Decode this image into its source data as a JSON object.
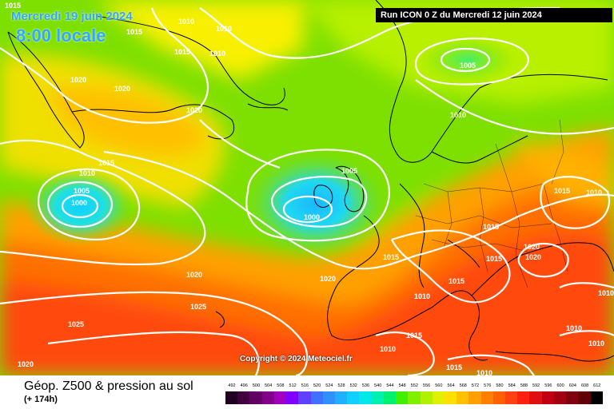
{
  "header": {
    "date_text": "Mercredi 19 juin 2024",
    "time_text": "8:00 locale",
    "run_text": "Run ICON 0 Z du Mercredi 12 juin 2024"
  },
  "footer": {
    "field_title": "Géop. Z500 & pression au sol",
    "lead_time": "(+ 174h)",
    "copyright": "Copyright © 2024 Meteociel.fr"
  },
  "colors": {
    "low_center": "#1ec8ff",
    "mid_green": "#7ee000",
    "high_yellow": "#f0e000",
    "warm_orange": "#ff9a00",
    "hot_red": "#ff3a10",
    "isobars": "#ffffff",
    "coastlines": "#000000"
  },
  "scale": {
    "labels": [
      "492",
      "496",
      "500",
      "504",
      "508",
      "512",
      "516",
      "520",
      "524",
      "528",
      "532",
      "536",
      "540",
      "544",
      "548",
      "552",
      "556",
      "560",
      "564",
      "568",
      "572",
      "576",
      "580",
      "584",
      "588",
      "592",
      "596",
      "600",
      "604",
      "608",
      "612"
    ],
    "colors": [
      "#200020",
      "#40003f",
      "#600060",
      "#80008a",
      "#a000c0",
      "#8000ff",
      "#6040ff",
      "#4070ff",
      "#3090ff",
      "#20b0ff",
      "#10d0ff",
      "#00e8e8",
      "#00f0b0",
      "#00f070",
      "#40f000",
      "#80f000",
      "#b0f000",
      "#e0f000",
      "#ffe000",
      "#ffc000",
      "#ffa000",
      "#ff8000",
      "#ff6000",
      "#ff4010",
      "#ff2010",
      "#e01010",
      "#c00010",
      "#a00010",
      "#800010",
      "#600008",
      "#000000"
    ]
  },
  "isobar_labels": [
    {
      "text": "1015"
    },
    {
      "text": "1015"
    },
    {
      "text": "1010"
    },
    {
      "text": "1010"
    },
    {
      "text": "1015"
    },
    {
      "text": "1010"
    },
    {
      "text": "1020"
    },
    {
      "text": "1020"
    },
    {
      "text": "1020"
    },
    {
      "text": "1005"
    },
    {
      "text": "1010"
    },
    {
      "text": "1015"
    },
    {
      "text": "1010"
    },
    {
      "text": "1005"
    },
    {
      "text": "1000"
    },
    {
      "text": "1005"
    },
    {
      "text": "1000"
    },
    {
      "text": "1015"
    },
    {
      "text": "1010"
    },
    {
      "text": "1015"
    },
    {
      "text": "1020"
    },
    {
      "text": "1020"
    },
    {
      "text": "1025"
    },
    {
      "text": "1025"
    },
    {
      "text": "1015"
    },
    {
      "text": "1015"
    },
    {
      "text": "1020"
    },
    {
      "text": "1020"
    },
    {
      "text": "1015"
    },
    {
      "text": "1010"
    },
    {
      "text": "1015"
    },
    {
      "text": "1010"
    },
    {
      "text": "1010"
    },
    {
      "text": "1010"
    },
    {
      "text": "1020"
    },
    {
      "text": "1015"
    },
    {
      "text": "1010"
    },
    {
      "text": "1010"
    }
  ]
}
